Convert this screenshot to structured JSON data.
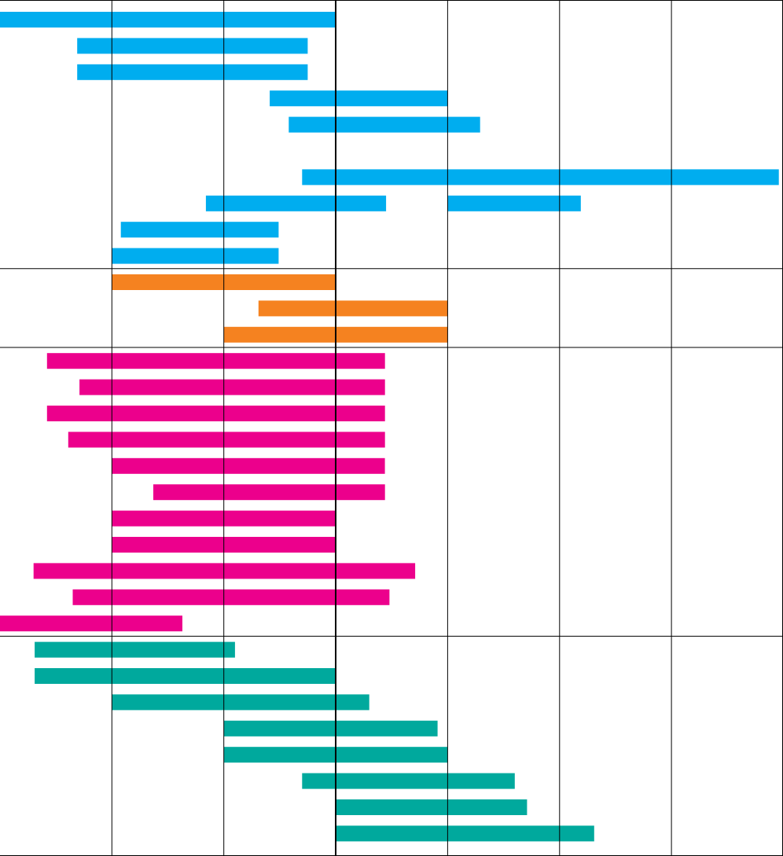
{
  "chart_data": {
    "type": "bar",
    "orientation": "horizontal-range",
    "title": "",
    "xlabel": "",
    "ylabel": "",
    "xlim": [
      0,
      7
    ],
    "xgrid": [
      1,
      2,
      3,
      4,
      5,
      6
    ],
    "reference_line": 3,
    "colors": {
      "blue": "#00adef",
      "orange": "#f58220",
      "magenta": "#ec008c",
      "teal": "#00a99d",
      "grid": "#000000"
    },
    "groups": [
      {
        "color": "blue",
        "bars": [
          [
            0.0,
            3.0
          ],
          [
            0.69,
            2.75
          ],
          [
            0.69,
            2.75
          ],
          [
            2.41,
            4.0
          ],
          [
            2.58,
            4.29
          ],
          null,
          [
            2.7,
            6.96
          ],
          [
            1.84,
            3.45
          ],
          [
            1.08,
            2.49
          ],
          [
            1.0,
            2.49
          ]
        ],
        "extra_bars": [
          {
            "row": 7,
            "range": [
              4.0,
              5.19
            ]
          }
        ]
      },
      {
        "color": "orange",
        "bars": [
          [
            1.0,
            3.0
          ],
          [
            2.31,
            4.0
          ],
          [
            2.0,
            4.0
          ]
        ]
      },
      {
        "color": "magenta",
        "bars": [
          [
            0.42,
            3.44
          ],
          [
            0.71,
            3.44
          ],
          [
            0.42,
            3.44
          ],
          [
            0.61,
            3.44
          ],
          [
            1.0,
            3.44
          ],
          [
            1.37,
            3.44
          ],
          [
            1.0,
            3.0
          ],
          [
            1.0,
            3.0
          ],
          [
            0.3,
            3.71
          ],
          [
            0.65,
            3.48
          ],
          [
            0.0,
            1.63
          ]
        ]
      },
      {
        "color": "teal",
        "bars": [
          [
            0.31,
            2.1
          ],
          [
            0.31,
            3.0
          ],
          [
            1.0,
            3.3
          ],
          [
            2.0,
            3.91
          ],
          [
            2.0,
            4.0
          ],
          [
            2.7,
            4.6
          ],
          [
            3.0,
            4.71
          ],
          [
            3.0,
            5.31
          ]
        ]
      }
    ]
  }
}
